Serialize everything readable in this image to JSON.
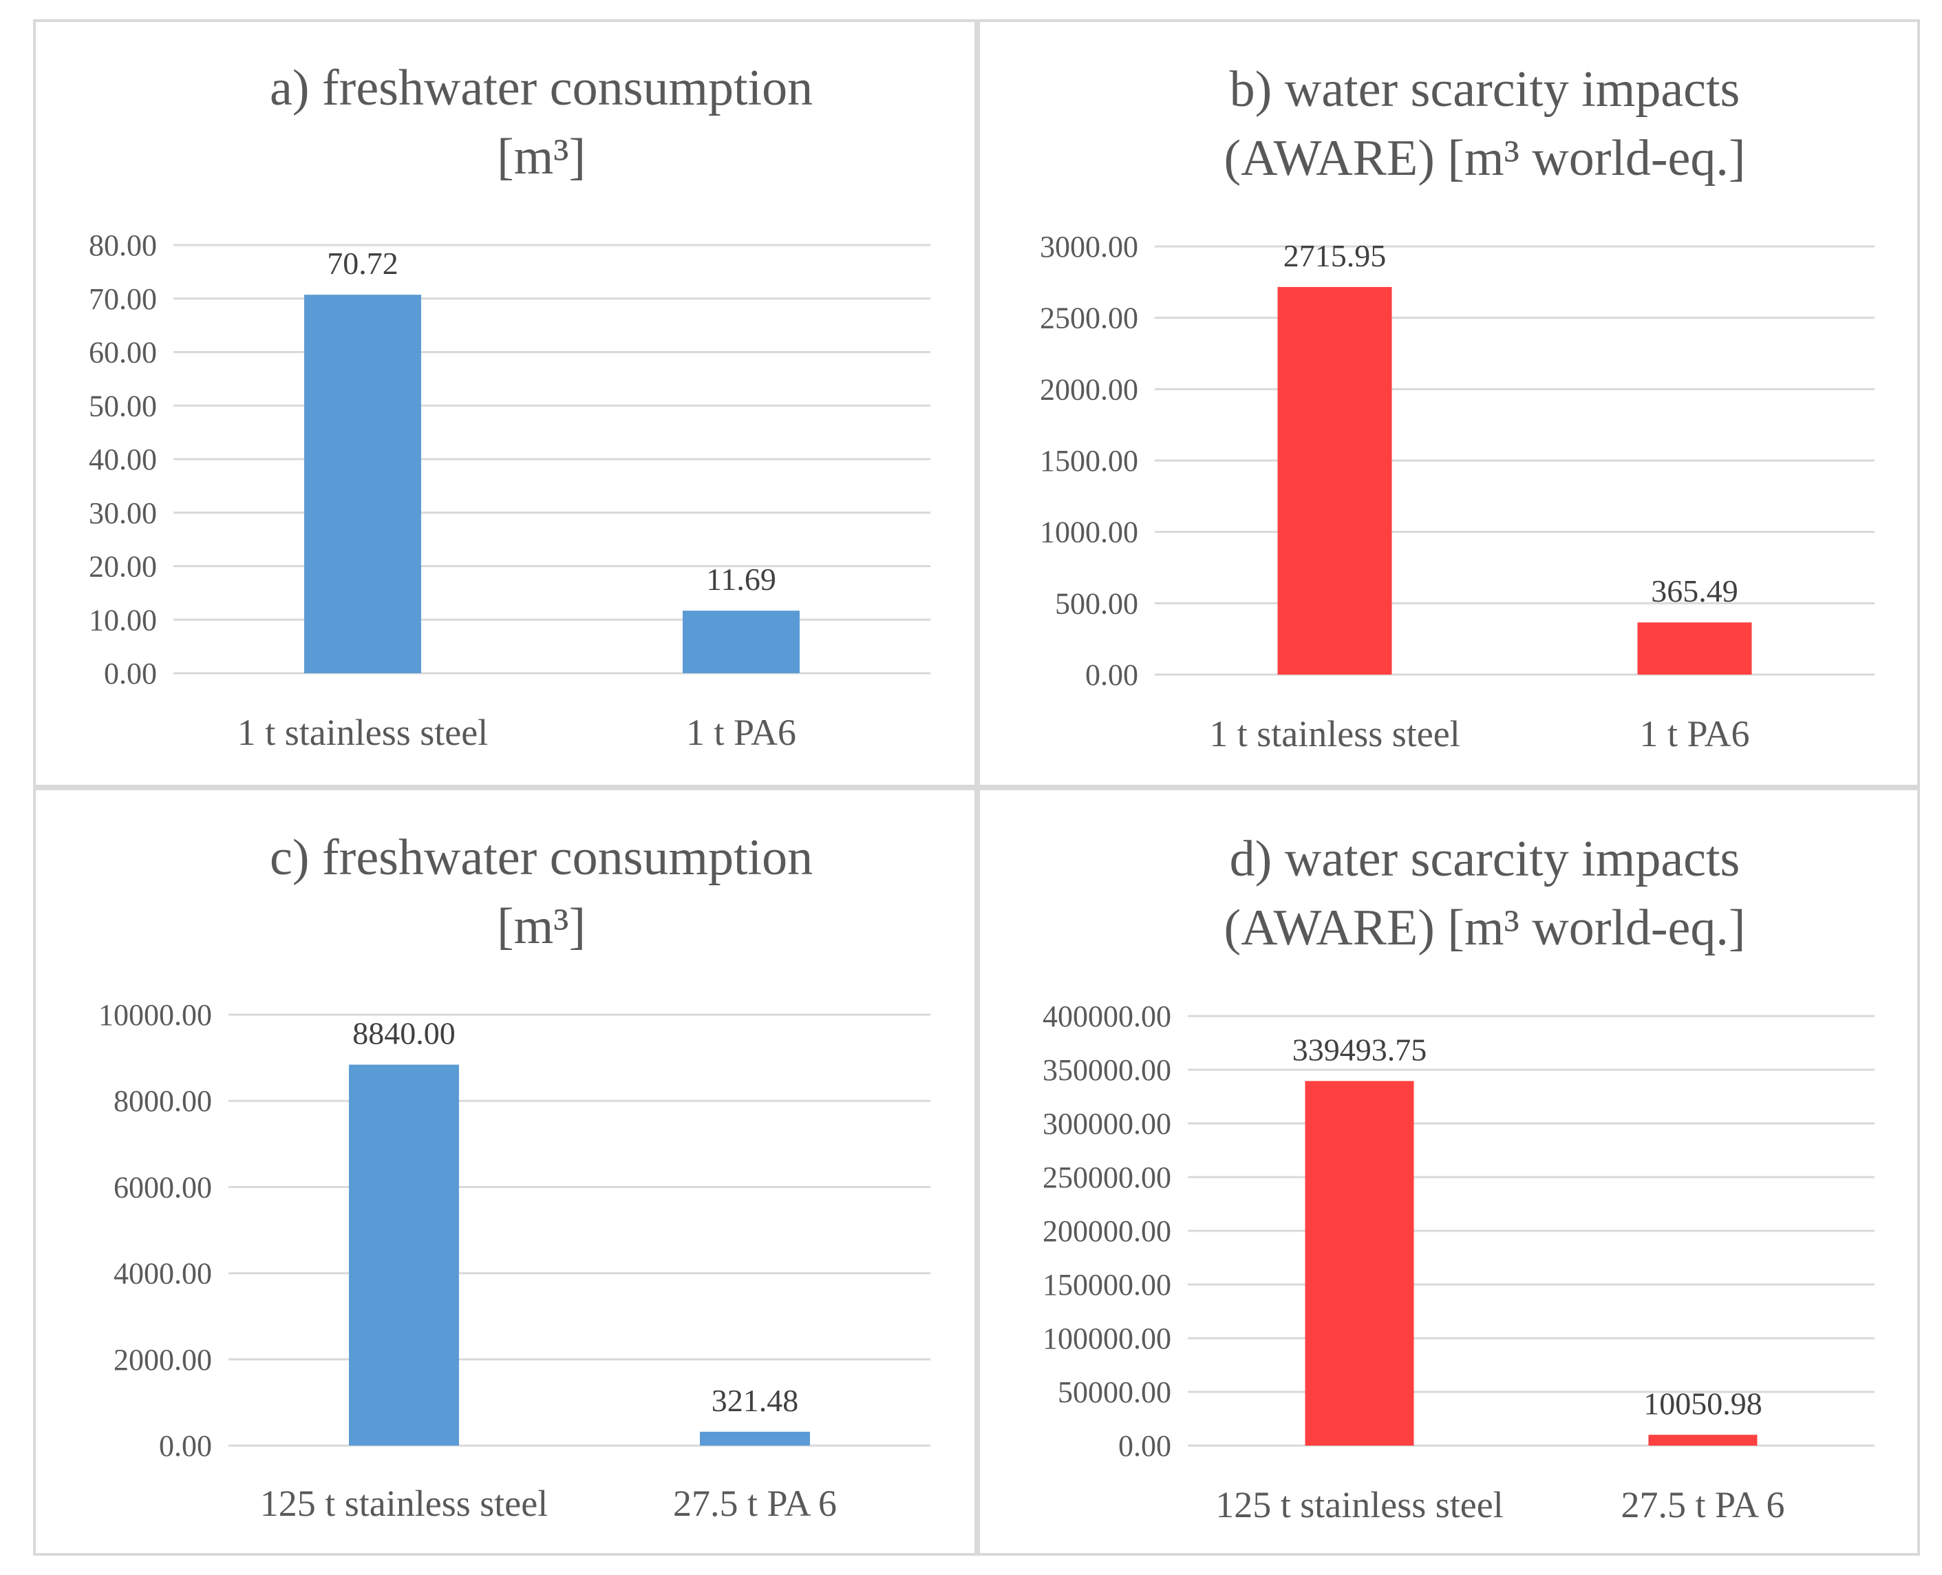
{
  "chart_data": [
    {
      "type": "bar",
      "title_lines": [
        "a) freshwater consumption",
        "[m³]"
      ],
      "categories": [
        "1 t stainless steel",
        "1 t PA6"
      ],
      "values": [
        70.72,
        11.69
      ],
      "value_labels": [
        "70.72",
        "11.69"
      ],
      "yticks": [
        "0.00",
        "10.00",
        "20.00",
        "30.00",
        "40.00",
        "50.00",
        "60.00",
        "70.00",
        "80.00"
      ],
      "ylim": [
        0,
        80
      ],
      "color": "#5b9bd5",
      "grid": true,
      "legend": "none"
    },
    {
      "type": "bar",
      "title_lines": [
        "b) water scarcity impacts",
        "(AWARE) [m³ world-eq.]"
      ],
      "categories": [
        "1 t stainless steel",
        "1 t PA6"
      ],
      "values": [
        2715.95,
        365.49
      ],
      "value_labels": [
        "2715.95",
        "365.49"
      ],
      "yticks": [
        "0.00",
        "500.00",
        "1000.00",
        "1500.00",
        "2000.00",
        "2500.00",
        "3000.00"
      ],
      "ylim": [
        0,
        3000
      ],
      "color": "#ff4040",
      "grid": true,
      "legend": "none"
    },
    {
      "type": "bar",
      "title_lines": [
        "c) freshwater consumption",
        "[m³]"
      ],
      "categories": [
        "125 t stainless steel",
        "27.5 t PA 6"
      ],
      "values": [
        8840.0,
        321.48
      ],
      "value_labels": [
        "8840.00",
        "321.48"
      ],
      "yticks": [
        "0.00",
        "2000.00",
        "4000.00",
        "6000.00",
        "8000.00",
        "10000.00"
      ],
      "ylim": [
        0,
        10000
      ],
      "color": "#5b9bd5",
      "grid": true,
      "legend": "none"
    },
    {
      "type": "bar",
      "title_lines": [
        "d) water scarcity impacts",
        "(AWARE) [m³ world-eq.]"
      ],
      "categories": [
        "125 t stainless steel",
        "27.5 t PA 6"
      ],
      "values": [
        339493.75,
        10050.98
      ],
      "value_labels": [
        "339493.75",
        "10050.98"
      ],
      "yticks": [
        "0.00",
        "50000.00",
        "100000.00",
        "150000.00",
        "200000.00",
        "250000.00",
        "300000.00",
        "350000.00",
        "400000.00"
      ],
      "ylim": [
        0,
        400000
      ],
      "color": "#ff4040",
      "grid": true,
      "legend": "none"
    }
  ]
}
